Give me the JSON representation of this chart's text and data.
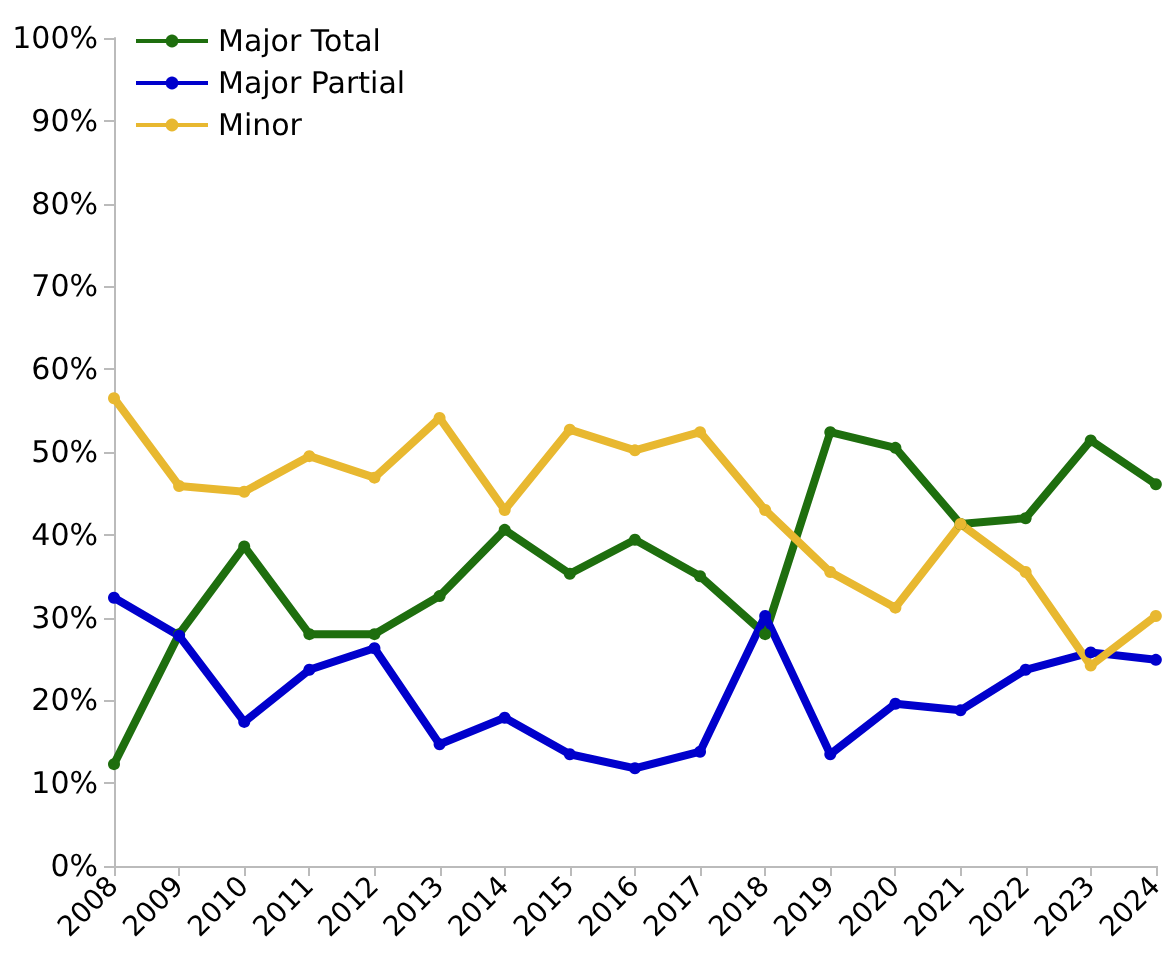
{
  "chart_data": {
    "type": "line",
    "categories": [
      "2008",
      "2009",
      "2010",
      "2011",
      "2012",
      "2013",
      "2014",
      "2015",
      "2016",
      "2017",
      "2018",
      "2019",
      "2020",
      "2021",
      "2022",
      "2023",
      "2024"
    ],
    "series": [
      {
        "name": "Major Total",
        "color": "#1e6e0e",
        "values": [
          12.3,
          28,
          38.6,
          28,
          28,
          32.6,
          40.6,
          35.3,
          39.4,
          35,
          28,
          52.4,
          50.5,
          41.3,
          42,
          51.4,
          46.1
        ]
      },
      {
        "name": "Major Partial",
        "color": "#0000cc",
        "values": [
          32.4,
          27.8,
          17.4,
          23.7,
          26.3,
          14.7,
          17.9,
          13.5,
          11.8,
          13.8,
          30.2,
          13.5,
          19.6,
          18.8,
          23.7,
          25.8,
          24.9
        ]
      },
      {
        "name": "Minor",
        "color": "#e8b830",
        "values": [
          56.5,
          45.9,
          45.2,
          49.5,
          46.9,
          54.1,
          43,
          52.7,
          50.2,
          52.4,
          43,
          35.5,
          31.2,
          41.3,
          35.5,
          24.2,
          30.2
        ]
      }
    ],
    "ylim": [
      0,
      100
    ],
    "yticks": [
      {
        "value": 0,
        "label": "0%"
      },
      {
        "value": 10,
        "label": "10%"
      },
      {
        "value": 20,
        "label": "20%"
      },
      {
        "value": 30,
        "label": "30%"
      },
      {
        "value": 40,
        "label": "40%"
      },
      {
        "value": 50,
        "label": "50%"
      },
      {
        "value": 60,
        "label": "60%"
      },
      {
        "value": 70,
        "label": "70%"
      },
      {
        "value": 80,
        "label": "80%"
      },
      {
        "value": 90,
        "label": "90%"
      },
      {
        "value": 100,
        "label": "100%"
      }
    ],
    "grid": false,
    "legend": "top left",
    "marker": "circle",
    "line_style": "solid"
  }
}
